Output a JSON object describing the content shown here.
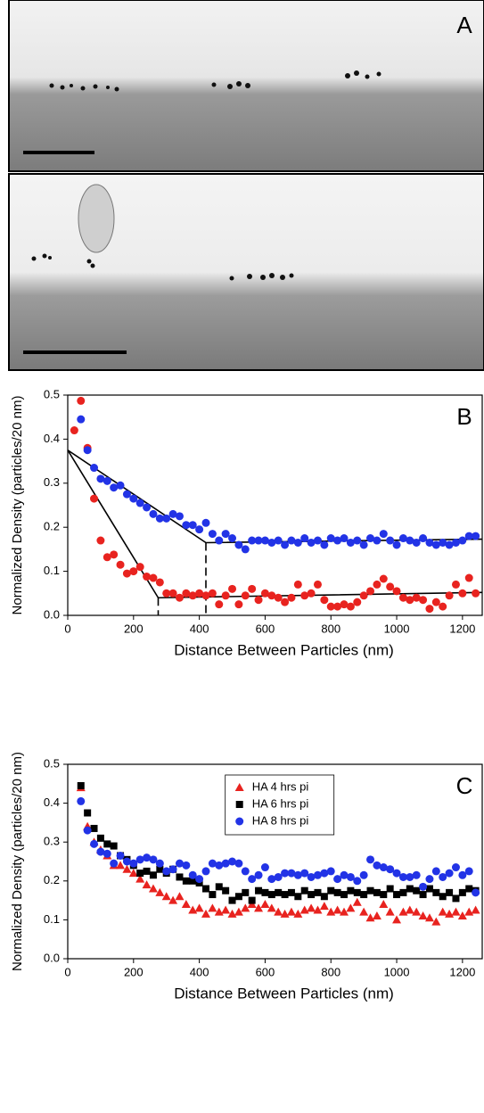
{
  "panel_label": "A",
  "chart_data": [
    {
      "type": "scatter",
      "panel_label": "B",
      "x_label": "Distance Between Particles (nm)",
      "y_label": "Normalized Density (particles/20 nm)",
      "xlim": [
        0,
        1260
      ],
      "ylim": [
        0,
        0.5
      ],
      "xticks": [
        0,
        200,
        400,
        600,
        800,
        1000,
        1200
      ],
      "yticks": [
        {
          "value": 0,
          "label": "0.0"
        },
        0.1,
        0.2,
        0.3,
        0.4,
        0.5
      ],
      "x": [
        20,
        40,
        60,
        80,
        100,
        120,
        140,
        160,
        180,
        200,
        220,
        240,
        260,
        280,
        300,
        320,
        340,
        360,
        380,
        400,
        420,
        440,
        460,
        480,
        500,
        520,
        540,
        560,
        580,
        600,
        620,
        640,
        660,
        680,
        700,
        720,
        740,
        760,
        780,
        800,
        820,
        840,
        860,
        880,
        900,
        920,
        940,
        960,
        980,
        1000,
        1020,
        1040,
        1060,
        1080,
        1100,
        1120,
        1140,
        1160,
        1180,
        1200,
        1220,
        1240
      ],
      "series": [
        {
          "color": "#e8231f",
          "marker": "circle",
          "values": [
            0.42,
            0.487,
            0.38,
            0.265,
            0.17,
            0.132,
            0.138,
            0.115,
            0.095,
            0.1,
            0.11,
            0.088,
            0.085,
            0.075,
            0.05,
            0.05,
            0.04,
            0.05,
            0.045,
            0.05,
            0.045,
            0.05,
            0.025,
            0.045,
            0.06,
            0.025,
            0.045,
            0.06,
            0.035,
            0.05,
            0.045,
            0.04,
            0.03,
            0.04,
            0.07,
            0.045,
            0.05,
            0.07,
            0.035,
            0.02,
            0.02,
            0.025,
            0.02,
            0.03,
            0.045,
            0.055,
            0.07,
            0.083,
            0.065,
            0.055,
            0.04,
            0.035,
            0.04,
            0.035,
            0.015,
            0.03,
            0.02,
            0.045,
            0.07,
            0.05,
            0.085,
            0.05
          ]
        },
        {
          "color": "#2233e6",
          "marker": "circle",
          "values": [
            null,
            0.445,
            0.375,
            0.335,
            0.31,
            0.305,
            0.29,
            0.295,
            0.275,
            0.265,
            0.255,
            0.245,
            0.23,
            0.22,
            0.22,
            0.23,
            0.225,
            0.205,
            0.205,
            0.195,
            0.21,
            0.185,
            0.17,
            0.185,
            0.175,
            0.16,
            0.15,
            0.17,
            0.17,
            0.17,
            0.165,
            0.17,
            0.16,
            0.17,
            0.165,
            0.175,
            0.165,
            0.17,
            0.16,
            0.175,
            0.17,
            0.175,
            0.165,
            0.17,
            0.16,
            0.175,
            0.17,
            0.185,
            0.17,
            0.16,
            0.175,
            0.17,
            0.165,
            0.175,
            0.165,
            0.16,
            0.165,
            0.16,
            0.165,
            0.17,
            0.18,
            0.18
          ]
        }
      ],
      "fit_lines": [
        {
          "color": "#000000",
          "x": [
            0,
            420,
            1260
          ],
          "y": [
            0.375,
            0.165,
            0.173
          ]
        },
        {
          "color": "#000000",
          "x": [
            0,
            275,
            1260
          ],
          "y": [
            0.375,
            0.04,
            0.052
          ]
        }
      ],
      "breakpoints": [
        {
          "x": 420,
          "y": 0.165
        },
        {
          "x": 275,
          "y": 0.04
        }
      ]
    },
    {
      "type": "scatter",
      "panel_label": "C",
      "x_label": "Distance Between Particles (nm)",
      "y_label": "Normalized Density (particles/20 nm)",
      "xlim": [
        0,
        1260
      ],
      "ylim": [
        0,
        0.5
      ],
      "xticks": [
        0,
        200,
        400,
        600,
        800,
        1000,
        1200
      ],
      "yticks": [
        {
          "value": 0,
          "label": "0.0"
        },
        0.1,
        0.2,
        0.3,
        0.4,
        0.5
      ],
      "legend": "upper center",
      "x": [
        40,
        60,
        80,
        100,
        120,
        140,
        160,
        180,
        200,
        220,
        240,
        260,
        280,
        300,
        320,
        340,
        360,
        380,
        400,
        420,
        440,
        460,
        480,
        500,
        520,
        540,
        560,
        580,
        600,
        620,
        640,
        660,
        680,
        700,
        720,
        740,
        760,
        780,
        800,
        820,
        840,
        860,
        880,
        900,
        920,
        940,
        960,
        980,
        1000,
        1020,
        1040,
        1060,
        1080,
        1100,
        1120,
        1140,
        1160,
        1180,
        1200,
        1220,
        1240
      ],
      "series": [
        {
          "name": "HA 4 hrs pi",
          "color": "#e8231f",
          "marker": "triangle",
          "values": [
            0.44,
            0.34,
            0.3,
            0.28,
            0.265,
            0.24,
            0.24,
            0.23,
            0.22,
            0.205,
            0.19,
            0.18,
            0.17,
            0.16,
            0.15,
            0.16,
            0.14,
            0.125,
            0.13,
            0.115,
            0.13,
            0.12,
            0.125,
            0.115,
            0.12,
            0.13,
            0.14,
            0.13,
            0.14,
            0.13,
            0.12,
            0.115,
            0.12,
            0.115,
            0.125,
            0.13,
            0.125,
            0.135,
            0.12,
            0.125,
            0.12,
            0.13,
            0.145,
            0.12,
            0.105,
            0.11,
            0.14,
            0.12,
            0.1,
            0.12,
            0.125,
            0.12,
            0.11,
            0.105,
            0.095,
            0.12,
            0.115,
            0.12,
            0.11,
            0.12,
            0.125
          ]
        },
        {
          "name": "HA 6 hrs pi",
          "color": "#000000",
          "marker": "square",
          "values": [
            0.445,
            0.375,
            0.335,
            0.31,
            0.295,
            0.29,
            0.265,
            0.255,
            0.24,
            0.22,
            0.225,
            0.215,
            0.23,
            0.22,
            0.23,
            0.21,
            0.2,
            0.2,
            0.195,
            0.18,
            0.165,
            0.185,
            0.175,
            0.15,
            0.16,
            0.17,
            0.15,
            0.175,
            0.17,
            0.165,
            0.17,
            0.165,
            0.17,
            0.16,
            0.175,
            0.165,
            0.17,
            0.16,
            0.175,
            0.17,
            0.165,
            0.175,
            0.17,
            0.165,
            0.175,
            0.17,
            0.165,
            0.18,
            0.165,
            0.17,
            0.18,
            0.175,
            0.165,
            0.18,
            0.17,
            0.16,
            0.17,
            0.155,
            0.17,
            0.18,
            0.175
          ]
        },
        {
          "name": "HA 8 hrs pi",
          "color": "#2233e6",
          "marker": "circle",
          "values": [
            0.405,
            0.33,
            0.295,
            0.275,
            0.27,
            0.245,
            0.265,
            0.25,
            0.245,
            0.255,
            0.26,
            0.255,
            0.245,
            0.225,
            0.23,
            0.245,
            0.24,
            0.215,
            0.205,
            0.225,
            0.245,
            0.24,
            0.245,
            0.25,
            0.245,
            0.225,
            0.205,
            0.215,
            0.235,
            0.205,
            0.21,
            0.22,
            0.22,
            0.215,
            0.22,
            0.21,
            0.215,
            0.22,
            0.225,
            0.205,
            0.215,
            0.21,
            0.2,
            0.215,
            0.255,
            0.24,
            0.235,
            0.23,
            0.22,
            0.21,
            0.21,
            0.215,
            0.185,
            0.205,
            0.225,
            0.21,
            0.22,
            0.235,
            0.215,
            0.225,
            0.17
          ]
        }
      ]
    }
  ]
}
